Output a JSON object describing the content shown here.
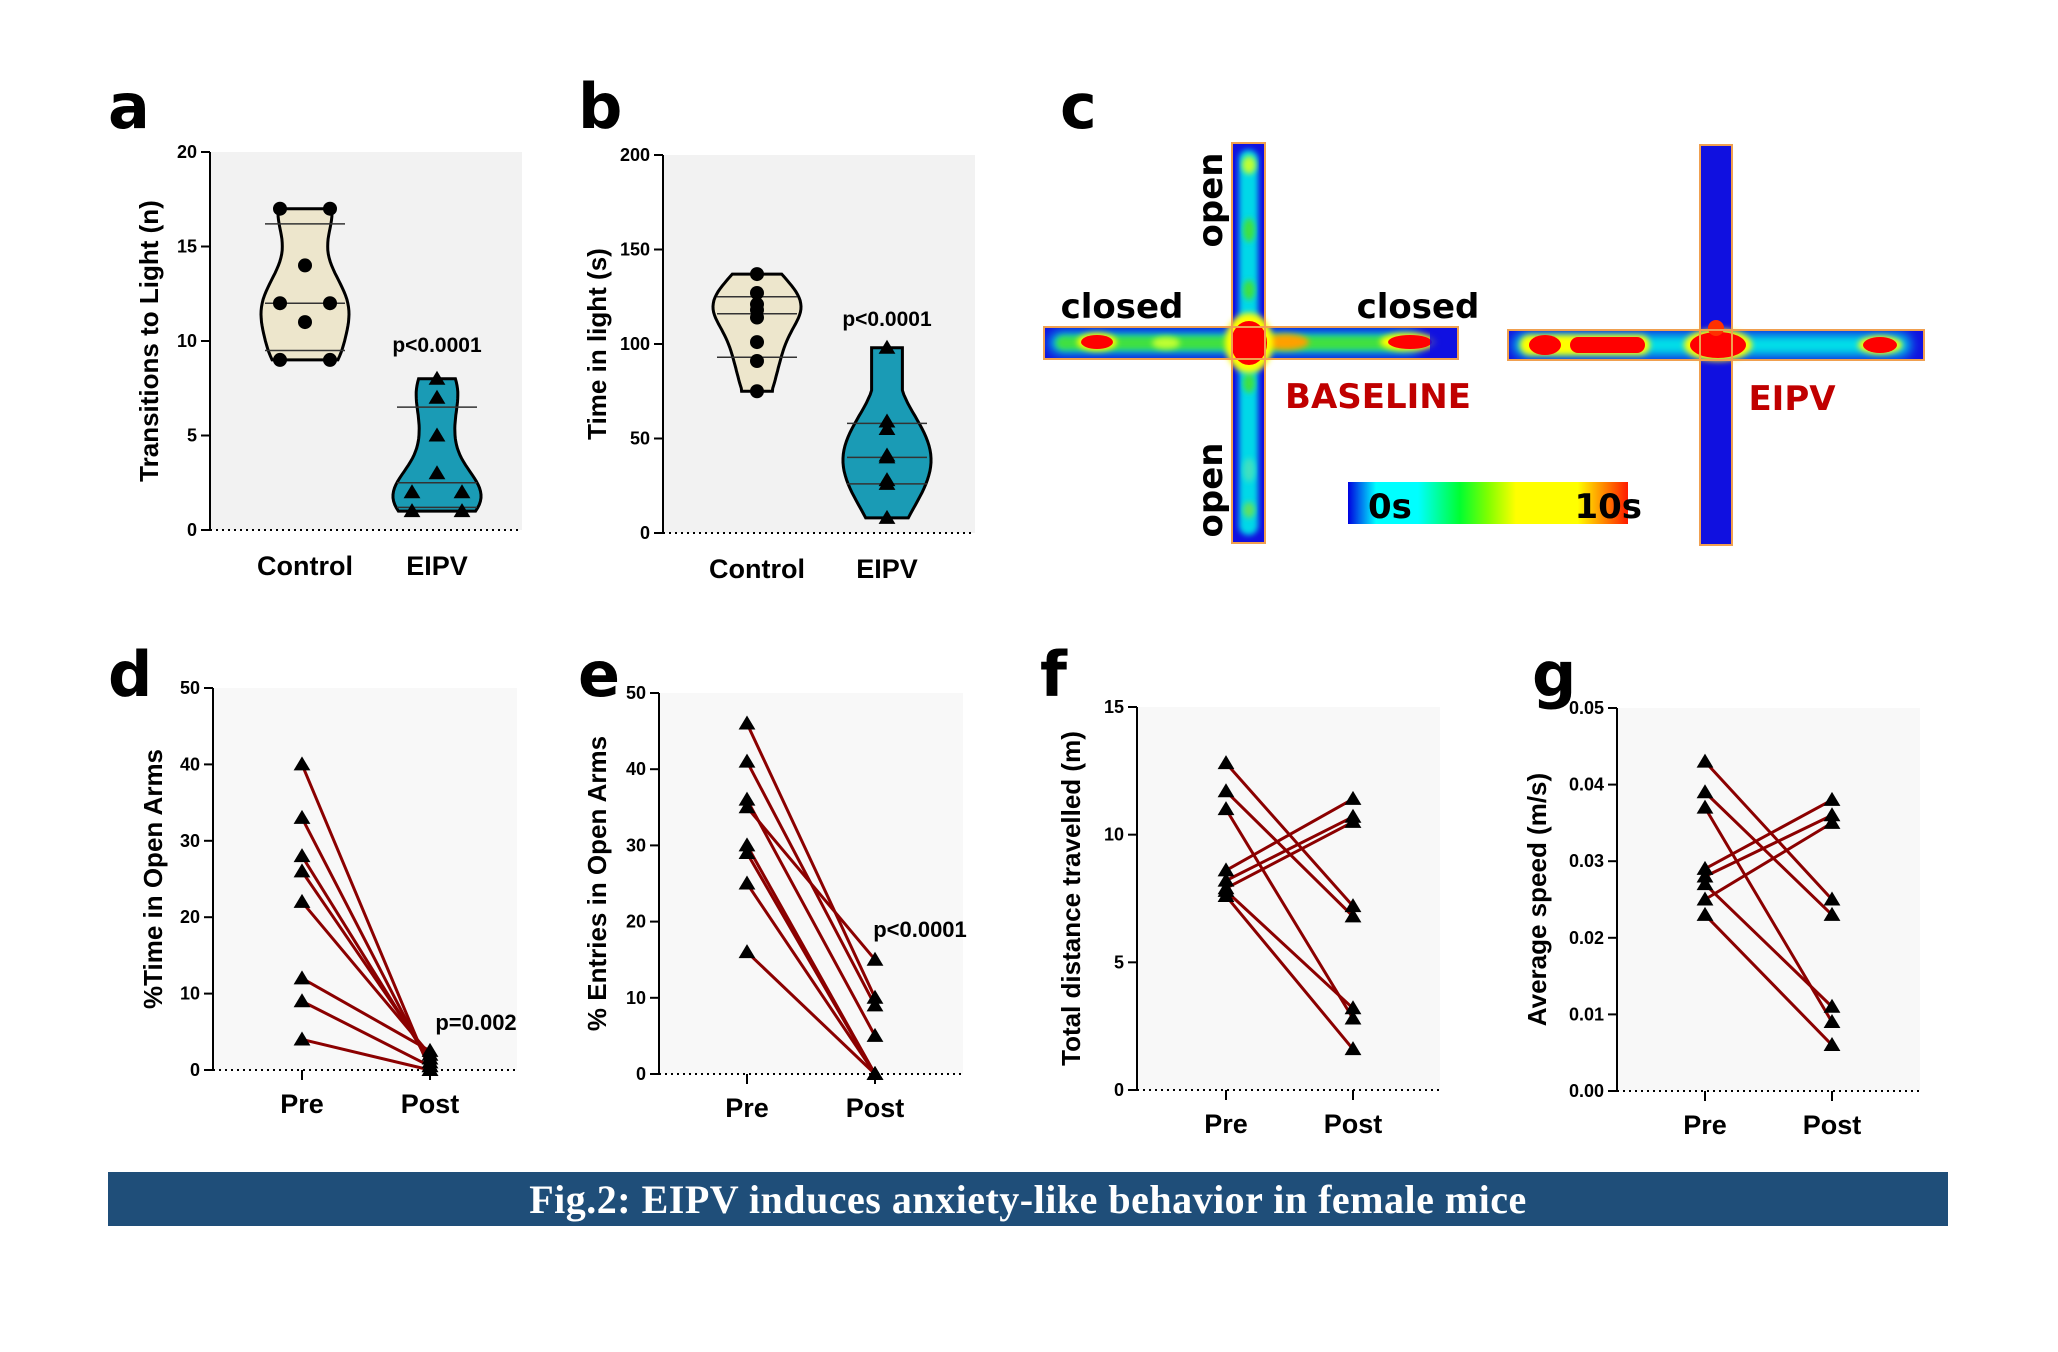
{
  "figure": {
    "caption": "Fig.2: EIPV induces anxiety-like behavior in female mice",
    "caption_bg": "#1f4e79",
    "panel_letters": [
      "a",
      "b",
      "c",
      "d",
      "e",
      "f",
      "g"
    ]
  },
  "colors": {
    "control_fill": "#ede6cc",
    "eipv_fill": "#1a9bb5",
    "pair_line": "#8b0000",
    "plot_bg_top": "#f2f2f2",
    "plot_bg_bottom": "#f8f8f8",
    "label_red": "#c00000"
  },
  "heatmap": {
    "arm_labels": {
      "open_top": "open",
      "open_bottom": "open",
      "closed_left": "closed",
      "closed_right": "closed"
    },
    "conditions": [
      "BASELINE",
      "EIPV"
    ],
    "colorbar": {
      "min_label": "0s",
      "max_label": "10s"
    }
  },
  "chart_data": [
    {
      "id": "a",
      "type": "violin",
      "title": "",
      "xlabel": "",
      "ylabel": "Transitions to Light  (n)",
      "ylim": [
        0,
        20
      ],
      "yticks": [
        0,
        5,
        10,
        15,
        20
      ],
      "categories": [
        "Control",
        "EIPV"
      ],
      "series": [
        {
          "name": "Control",
          "marker": "circle",
          "values": [
            17,
            17,
            14,
            12,
            12,
            11,
            9,
            9
          ],
          "quartiles": [
            9.5,
            12,
            16.2
          ]
        },
        {
          "name": "EIPV",
          "marker": "triangle",
          "values": [
            8,
            7,
            5,
            3,
            2,
            2,
            1,
            1
          ],
          "quartiles": [
            1.2,
            2.5,
            6.5
          ]
        }
      ],
      "annotation": "p<0.0001"
    },
    {
      "id": "b",
      "type": "violin",
      "title": "",
      "xlabel": "",
      "ylabel": "Time in light (s)",
      "ylim": [
        0,
        200
      ],
      "yticks": [
        0,
        50,
        100,
        150,
        200
      ],
      "categories": [
        "Control",
        "EIPV"
      ],
      "series": [
        {
          "name": "Control",
          "marker": "circle",
          "values": [
            137,
            127,
            121,
            118,
            114,
            101,
            91,
            75
          ],
          "quartiles": [
            93,
            116,
            125
          ]
        },
        {
          "name": "EIPV",
          "marker": "triangle",
          "values": [
            98,
            59,
            55,
            41,
            40,
            28,
            26,
            8
          ],
          "quartiles": [
            26,
            40,
            58
          ]
        }
      ],
      "annotation": "p<0.0001"
    },
    {
      "id": "d",
      "type": "line",
      "ylabel": "%Time in Open Arms",
      "ylim": [
        0,
        50
      ],
      "yticks": [
        0,
        10,
        20,
        30,
        40,
        50
      ],
      "categories": [
        "Pre",
        "Post"
      ],
      "pairs": [
        [
          40,
          0
        ],
        [
          33,
          0.5
        ],
        [
          28,
          1
        ],
        [
          26,
          1.5
        ],
        [
          22,
          2
        ],
        [
          12,
          2.5
        ],
        [
          9,
          0.5
        ],
        [
          4,
          0
        ]
      ],
      "annotation": "p=0.002"
    },
    {
      "id": "e",
      "type": "line",
      "ylabel": "% Entries in Open Arms",
      "ylim": [
        0,
        50
      ],
      "yticks": [
        0,
        10,
        20,
        30,
        40,
        50
      ],
      "categories": [
        "Pre",
        "Post"
      ],
      "pairs": [
        [
          46,
          10
        ],
        [
          41,
          9
        ],
        [
          36,
          5
        ],
        [
          35,
          15
        ],
        [
          30,
          0
        ],
        [
          29,
          0
        ],
        [
          25,
          0
        ],
        [
          16,
          0
        ]
      ],
      "annotation": "p<0.0001"
    },
    {
      "id": "f",
      "type": "line",
      "ylabel": "Total distance travelled (m)",
      "ylim": [
        0,
        15
      ],
      "yticks": [
        0,
        5,
        10,
        15
      ],
      "categories": [
        "Pre",
        "Post"
      ],
      "pairs": [
        [
          12.8,
          7.2
        ],
        [
          11.7,
          6.8
        ],
        [
          11.0,
          2.8
        ],
        [
          8.6,
          11.4
        ],
        [
          8.2,
          10.7
        ],
        [
          7.9,
          10.5
        ],
        [
          7.8,
          3.2
        ],
        [
          7.6,
          1.6
        ]
      ],
      "annotation": ""
    },
    {
      "id": "g",
      "type": "line",
      "ylabel": "Average speed (m/s)",
      "ylim": [
        0,
        0.05
      ],
      "yticks": [
        "0.00",
        "0.01",
        "0.02",
        "0.03",
        "0.04",
        "0.05"
      ],
      "categories": [
        "Pre",
        "Post"
      ],
      "pairs": [
        [
          0.043,
          0.025
        ],
        [
          0.039,
          0.023
        ],
        [
          0.037,
          0.009
        ],
        [
          0.029,
          0.038
        ],
        [
          0.028,
          0.036
        ],
        [
          0.027,
          0.011
        ],
        [
          0.025,
          0.035
        ],
        [
          0.023,
          0.006
        ]
      ],
      "annotation": ""
    }
  ]
}
